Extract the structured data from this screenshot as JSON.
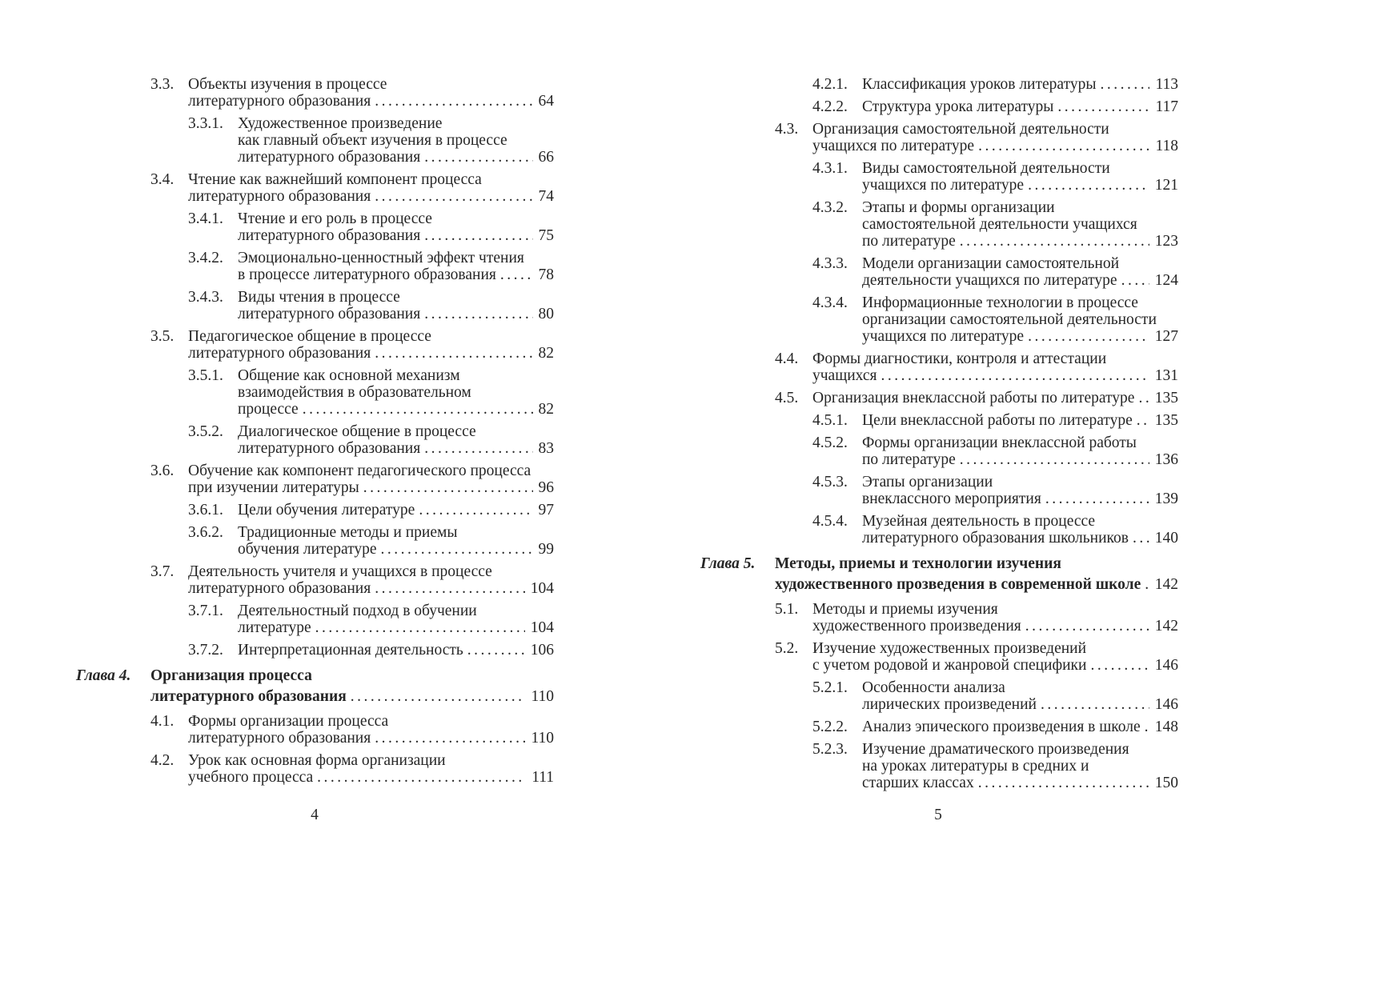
{
  "pages": [
    {
      "folio": "4",
      "entries": [
        {
          "type": "l1",
          "num": "3.3.",
          "lines": [
            "Объекты изучения в процессе",
            "литературного образования"
          ],
          "page": "64"
        },
        {
          "type": "l2",
          "num": "3.3.1.",
          "lines": [
            "Художественное произведение",
            "как главный объект изучения в процессе",
            "литературного образования"
          ],
          "page": "66"
        },
        {
          "type": "l1",
          "num": "3.4.",
          "lines": [
            "Чтение как важнейший компонент процесса",
            "литературного образования"
          ],
          "page": "74"
        },
        {
          "type": "l2",
          "num": "3.4.1.",
          "lines": [
            "Чтение и его роль в процессе",
            "литературного образования"
          ],
          "page": "75"
        },
        {
          "type": "l2",
          "num": "3.4.2.",
          "lines": [
            "Эмоционально-ценностный эффект чтения",
            "в процессе литературного образования"
          ],
          "page": "78"
        },
        {
          "type": "l2",
          "num": "3.4.3.",
          "lines": [
            "Виды чтения в процессе",
            "литературного образования"
          ],
          "page": "80"
        },
        {
          "type": "l1",
          "num": "3.5.",
          "lines": [
            "Педагогическое общение в процессе",
            "литературного образования"
          ],
          "page": "82"
        },
        {
          "type": "l2",
          "num": "3.5.1.",
          "lines": [
            "Общение как основной механизм",
            "взаимодействия в образовательном",
            "процессе"
          ],
          "page": "82"
        },
        {
          "type": "l2",
          "num": "3.5.2.",
          "lines": [
            "Диалогическое общение в процессе",
            "литературного образования"
          ],
          "page": "83"
        },
        {
          "type": "l1",
          "num": "3.6.",
          "lines": [
            "Обучение как компонент педагогического процесса",
            "при изучении литературы"
          ],
          "page": "96"
        },
        {
          "type": "l2",
          "num": "3.6.1.",
          "lines": [
            "Цели обучения литературе"
          ],
          "page": "97"
        },
        {
          "type": "l2",
          "num": "3.6.2.",
          "lines": [
            "Традиционные методы и приемы",
            "обучения литературе"
          ],
          "page": "99"
        },
        {
          "type": "l1",
          "num": "3.7.",
          "lines": [
            "Деятельность учителя и учащихся в процессе",
            "литературного образования"
          ],
          "page": "104"
        },
        {
          "type": "l2",
          "num": "3.7.1.",
          "lines": [
            "Деятельностный подход в обучении",
            "литературе"
          ],
          "page": "104"
        },
        {
          "type": "l2",
          "num": "3.7.2.",
          "lines": [
            "Интерпретационная деятельность"
          ],
          "page": "106"
        },
        {
          "type": "chapter",
          "num": "Глава 4.",
          "lines": [
            "Организация процесса",
            "литературного образования"
          ],
          "page": "110"
        },
        {
          "type": "l1",
          "num": "4.1.",
          "lines": [
            "Формы организации процесса",
            "литературного образования"
          ],
          "page": "110"
        },
        {
          "type": "l1",
          "num": "4.2.",
          "lines": [
            "Урок как основная форма организации",
            "учебного процесса"
          ],
          "page": "111"
        }
      ]
    },
    {
      "folio": "5",
      "entries": [
        {
          "type": "l2",
          "num": "4.2.1.",
          "lines": [
            "Классификация уроков литературы"
          ],
          "page": "113"
        },
        {
          "type": "l2",
          "num": "4.2.2.",
          "lines": [
            "Структура урока литературы"
          ],
          "page": "117"
        },
        {
          "type": "l1",
          "num": "4.3.",
          "lines": [
            "Организация самостоятельной деятельности",
            "учащихся по литературе"
          ],
          "page": "118"
        },
        {
          "type": "l2",
          "num": "4.3.1.",
          "lines": [
            "Виды самостоятельной деятельности",
            "учащихся по литературе"
          ],
          "page": "121"
        },
        {
          "type": "l2",
          "num": "4.3.2.",
          "lines": [
            "Этапы и формы организации",
            "самостоятельной деятельности учащихся",
            "по литературе"
          ],
          "page": "123"
        },
        {
          "type": "l2",
          "num": "4.3.3.",
          "lines": [
            "Модели организации самостоятельной",
            "деятельности учащихся по литературе"
          ],
          "page": "124"
        },
        {
          "type": "l2",
          "num": "4.3.4.",
          "lines": [
            "Информационные технологии в процессе",
            "организации самостоятельной деятельности",
            "учащихся по литературе"
          ],
          "page": "127"
        },
        {
          "type": "l1",
          "num": "4.4.",
          "lines": [
            "Формы диагностики, контроля и аттестации",
            "учащихся"
          ],
          "page": "131"
        },
        {
          "type": "l1",
          "num": "4.5.",
          "lines": [
            "Организация внеклассной работы по литературе"
          ],
          "page": "135"
        },
        {
          "type": "l2",
          "num": "4.5.1.",
          "lines": [
            "Цели внеклассной работы по литературе"
          ],
          "page": "135"
        },
        {
          "type": "l2",
          "num": "4.5.2.",
          "lines": [
            "Формы организации внеклассной работы",
            "по литературе"
          ],
          "page": "136"
        },
        {
          "type": "l2",
          "num": "4.5.3.",
          "lines": [
            "Этапы организации",
            "внеклассного мероприятия"
          ],
          "page": "139"
        },
        {
          "type": "l2",
          "num": "4.5.4.",
          "lines": [
            "Музейная деятельность в процессе",
            "литературного образования школьников"
          ],
          "page": "140"
        },
        {
          "type": "chapter",
          "num": "Глава 5.",
          "lines": [
            "Методы, приемы и технологии изучения",
            "художественного прозведения в современной школе"
          ],
          "page": "142"
        },
        {
          "type": "l1",
          "num": "5.1.",
          "lines": [
            "Методы и приемы изучения",
            "художественного произведения"
          ],
          "page": "142"
        },
        {
          "type": "l1",
          "num": "5.2.",
          "lines": [
            "Изучение художественных произведений",
            "с учетом родовой и жанровой специфики"
          ],
          "page": "146"
        },
        {
          "type": "l2",
          "num": "5.2.1.",
          "lines": [
            "Особенности анализа",
            "лирических произведений"
          ],
          "page": "146"
        },
        {
          "type": "l2",
          "num": "5.2.2.",
          "lines": [
            "Анализ эпического произведения в школе"
          ],
          "page": "148"
        },
        {
          "type": "l2",
          "num": "5.2.3.",
          "lines": [
            "Изучение драматического произведения",
            "на уроках литературы в средних и",
            "старших классах"
          ],
          "page": "150"
        }
      ]
    }
  ]
}
